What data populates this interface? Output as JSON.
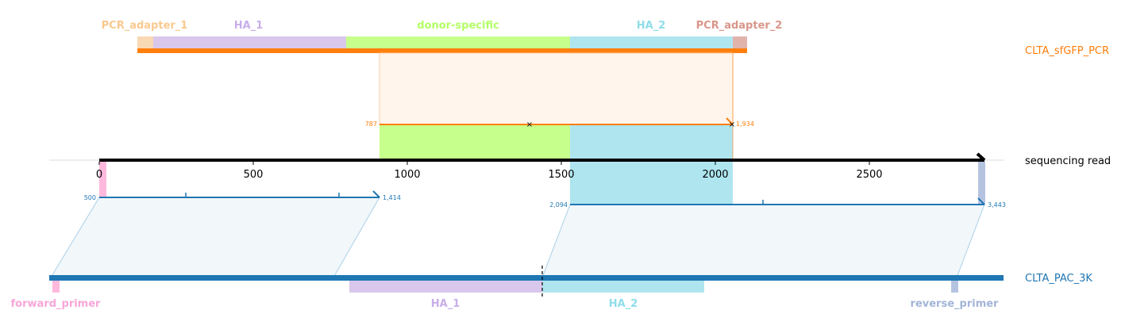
{
  "donor_feature_labels": {
    "pcr_adapter_1": "PCR_adapter_1",
    "ha_1": "HA_1",
    "donor_specific": "donor-specific",
    "ha_2": "HA_2",
    "pcr_adapter_2": "PCR_adapter_2"
  },
  "target_feature_labels": {
    "forward_primer": "forward_primer",
    "ha_1": "HA_1",
    "ha_2": "HA_2",
    "reverse_primer": "reverse_primer"
  },
  "track_labels": {
    "donor": "CLTA_sfGFP_PCR",
    "read": "sequencing read",
    "target": "CLTA_PAC_3K"
  },
  "axis": {
    "ticks": [
      "0",
      "500",
      "1000",
      "1500",
      "2000",
      "2500"
    ]
  },
  "alignments": {
    "donor_start": "787",
    "donor_end": "1,934",
    "target_left_start": "500",
    "target_left_end": "1,414",
    "target_right_start": "2,094",
    "target_right_end": "3,443"
  },
  "colors": {
    "pcr_adapter_1": "#f9d8b4",
    "ha_1": "#d9c7ec",
    "donor_specific": "#c6ff8c",
    "ha_2": "#aee5ef",
    "pcr_adapter_2": "#e0b4ab",
    "donor_line": "#ff7f0e",
    "target_line": "#1f77b4",
    "primer_forward": "#ffb9dd",
    "primer_reverse": "#b4c4e0",
    "label_pcr1": "#f9c98e",
    "label_ha1": "#c8aeea",
    "label_donor": "#b3ff66",
    "label_ha2": "#8fdde9",
    "label_pcr2": "#d9968a",
    "label_fwd": "#f7a6d8",
    "label_rev": "#a4b4d8"
  }
}
